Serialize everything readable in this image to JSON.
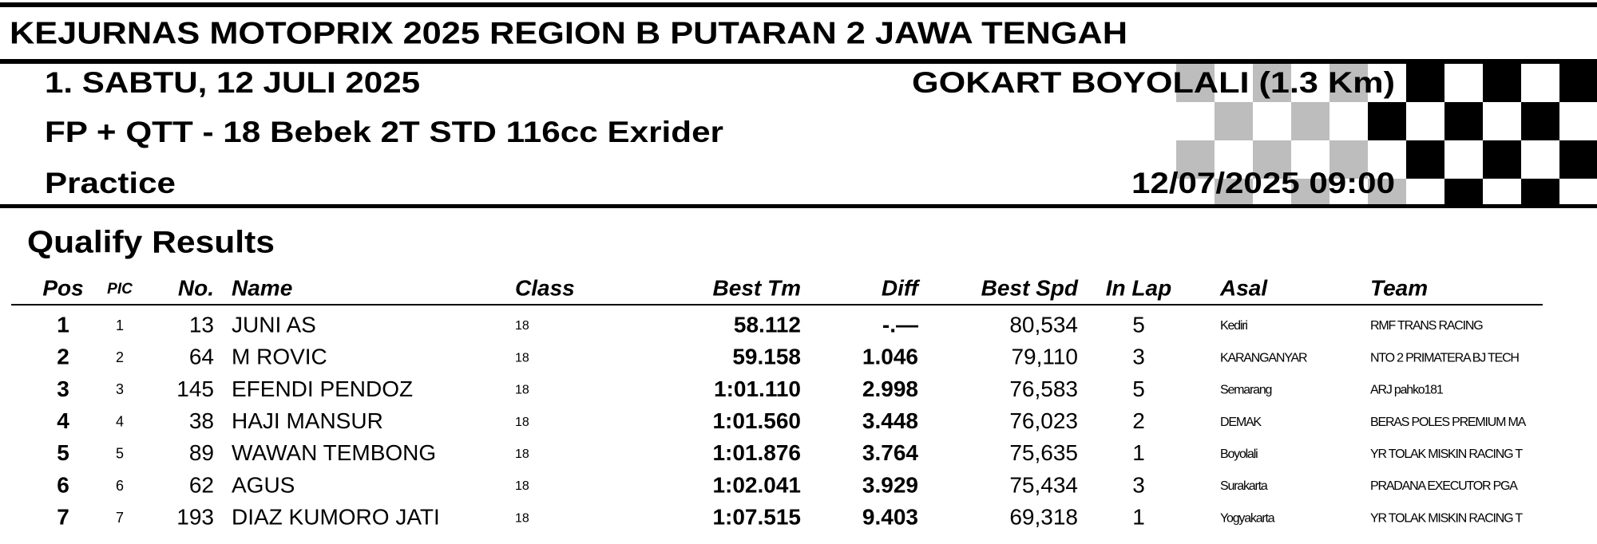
{
  "header": {
    "title": "KEJURNAS MOTOPRIX 2025 REGION B PUTARAN 2 JAWA TENGAH",
    "day": "1. SABTU, 12 JULI 2025",
    "event": "FP + QTT - 18 Bebek 2T STD 116cc Exrider",
    "session": "Practice",
    "venue": "GOKART BOYOLALI (1.3 Km)",
    "datetime": "12/07/2025  09:00"
  },
  "section_title": "Qualify Results",
  "table": {
    "columns": [
      "Pos",
      "PIC",
      "No.",
      "Name",
      "Class",
      "Best Tm",
      "Diff",
      "Best Spd",
      "In Lap",
      "Asal",
      "Team"
    ],
    "rows": [
      [
        "1",
        "1",
        "13",
        "JUNI AS",
        "18",
        "58.112",
        "-.—",
        "80,534",
        "5",
        "Kediri",
        "RMF TRANS RACING"
      ],
      [
        "2",
        "2",
        "64",
        "M ROVIC",
        "18",
        "59.158",
        "1.046",
        "79,110",
        "3",
        "KARANGANYAR",
        "NTO 2 PRIMATERA BJ TECH"
      ],
      [
        "3",
        "3",
        "145",
        "EFENDI PENDOZ",
        "18",
        "1:01.110",
        "2.998",
        "76,583",
        "5",
        "Semarang",
        "ARJ pahko181"
      ],
      [
        "4",
        "4",
        "38",
        "HAJI MANSUR",
        "18",
        "1:01.560",
        "3.448",
        "76,023",
        "2",
        "DEMAK",
        "BERAS POLES PREMIUM MA"
      ],
      [
        "5",
        "5",
        "89",
        "WAWAN TEMBONG",
        "18",
        "1:01.876",
        "3.764",
        "75,635",
        "1",
        "Boyolali",
        "YR TOLAK MISKIN RACING T"
      ],
      [
        "6",
        "6",
        "62",
        "AGUS",
        "18",
        "1:02.041",
        "3.929",
        "75,434",
        "3",
        "Surakarta",
        "PRADANA EXECUTOR PGA"
      ],
      [
        "7",
        "7",
        "193",
        "DIAZ KUMORO JATI",
        "18",
        "1:07.515",
        "9.403",
        "69,318",
        "1",
        "Yogyakarta",
        "YR TOLAK MISKIN RACING T"
      ]
    ]
  }
}
